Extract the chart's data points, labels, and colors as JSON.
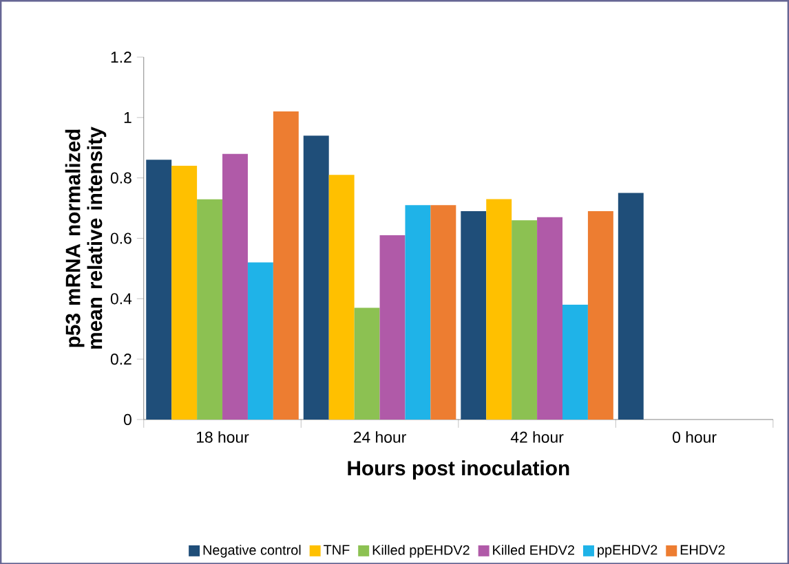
{
  "chart_data": {
    "type": "bar",
    "xlabel": "Hours post inoculation",
    "ylabel": "p53 mRNA normalized mean relative intensity",
    "categories": [
      "18 hour",
      "24 hour",
      "42 hour",
      "0 hour"
    ],
    "series": [
      {
        "name": "Negative control",
        "color": "#1f4e79",
        "values": [
          0.86,
          0.94,
          0.69,
          0.75
        ]
      },
      {
        "name": "TNF",
        "color": "#ffc000",
        "values": [
          0.84,
          0.81,
          0.73,
          null
        ]
      },
      {
        "name": "Killed ppEHDV2",
        "color": "#8cc152",
        "values": [
          0.73,
          0.37,
          0.66,
          null
        ]
      },
      {
        "name": "Killed EHDV2",
        "color": "#b05aa8",
        "values": [
          0.88,
          0.61,
          0.67,
          null
        ]
      },
      {
        "name": "ppEHDV2",
        "color": "#1fb3e8",
        "values": [
          0.52,
          0.71,
          0.38,
          null
        ]
      },
      {
        "name": "EHDV2",
        "color": "#ed7d31",
        "values": [
          1.02,
          0.71,
          0.69,
          null
        ]
      }
    ],
    "ylim": [
      0,
      1.2
    ],
    "yticks": [
      0,
      0.2,
      0.4,
      0.6,
      0.8,
      1,
      1.2
    ],
    "grid": false,
    "legend": "bottom"
  }
}
